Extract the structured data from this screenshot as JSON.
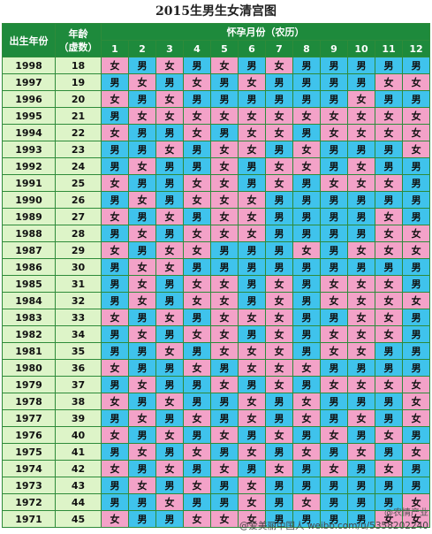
{
  "title": "2015生男生女清宫图",
  "header": {
    "birth_year": "出生年份",
    "age_line1": "年龄",
    "age_line2": "（虚数）",
    "month_group": "怀孕月份（农历）",
    "months": [
      "1",
      "2",
      "3",
      "4",
      "5",
      "6",
      "7",
      "8",
      "9",
      "10",
      "11",
      "12"
    ]
  },
  "legend": {
    "boy": "男",
    "girl": "女"
  },
  "rows": [
    {
      "year": "1998",
      "age": "18",
      "cells": [
        "女",
        "男",
        "女",
        "男",
        "女",
        "男",
        "女",
        "男",
        "男",
        "男",
        "男",
        "男"
      ]
    },
    {
      "year": "1997",
      "age": "19",
      "cells": [
        "男",
        "女",
        "男",
        "女",
        "男",
        "女",
        "男",
        "男",
        "男",
        "男",
        "女",
        "女"
      ]
    },
    {
      "year": "1996",
      "age": "20",
      "cells": [
        "女",
        "男",
        "女",
        "男",
        "男",
        "男",
        "男",
        "男",
        "男",
        "女",
        "男",
        "男"
      ]
    },
    {
      "year": "1995",
      "age": "21",
      "cells": [
        "男",
        "女",
        "女",
        "女",
        "女",
        "女",
        "女",
        "女",
        "女",
        "女",
        "女",
        "女"
      ]
    },
    {
      "year": "1994",
      "age": "22",
      "cells": [
        "女",
        "男",
        "男",
        "女",
        "男",
        "女",
        "女",
        "男",
        "女",
        "女",
        "女",
        "女"
      ]
    },
    {
      "year": "1993",
      "age": "23",
      "cells": [
        "男",
        "男",
        "女",
        "男",
        "女",
        "女",
        "男",
        "女",
        "男",
        "男",
        "男",
        "女"
      ]
    },
    {
      "year": "1992",
      "age": "24",
      "cells": [
        "男",
        "女",
        "男",
        "男",
        "女",
        "男",
        "女",
        "女",
        "男",
        "女",
        "男",
        "男"
      ]
    },
    {
      "year": "1991",
      "age": "25",
      "cells": [
        "女",
        "男",
        "男",
        "女",
        "女",
        "男",
        "女",
        "男",
        "女",
        "女",
        "女",
        "男"
      ]
    },
    {
      "year": "1990",
      "age": "26",
      "cells": [
        "男",
        "女",
        "男",
        "女",
        "女",
        "女",
        "男",
        "男",
        "男",
        "男",
        "男",
        "男"
      ]
    },
    {
      "year": "1989",
      "age": "27",
      "cells": [
        "女",
        "男",
        "女",
        "男",
        "女",
        "女",
        "男",
        "男",
        "男",
        "男",
        "女",
        "男"
      ]
    },
    {
      "year": "1988",
      "age": "28",
      "cells": [
        "男",
        "女",
        "男",
        "女",
        "女",
        "女",
        "男",
        "男",
        "男",
        "男",
        "女",
        "女"
      ]
    },
    {
      "year": "1987",
      "age": "29",
      "cells": [
        "女",
        "男",
        "女",
        "女",
        "男",
        "男",
        "男",
        "女",
        "男",
        "女",
        "女",
        "女"
      ]
    },
    {
      "year": "1986",
      "age": "30",
      "cells": [
        "男",
        "女",
        "女",
        "男",
        "男",
        "男",
        "男",
        "男",
        "男",
        "男",
        "男",
        "男"
      ]
    },
    {
      "year": "1985",
      "age": "31",
      "cells": [
        "男",
        "女",
        "男",
        "女",
        "女",
        "男",
        "女",
        "男",
        "女",
        "女",
        "女",
        "男"
      ]
    },
    {
      "year": "1984",
      "age": "32",
      "cells": [
        "男",
        "女",
        "男",
        "女",
        "女",
        "男",
        "女",
        "男",
        "女",
        "女",
        "女",
        "女"
      ]
    },
    {
      "year": "1983",
      "age": "33",
      "cells": [
        "女",
        "男",
        "女",
        "男",
        "女",
        "女",
        "女",
        "男",
        "男",
        "女",
        "女",
        "男"
      ]
    },
    {
      "year": "1982",
      "age": "34",
      "cells": [
        "男",
        "女",
        "男",
        "女",
        "女",
        "男",
        "女",
        "男",
        "女",
        "女",
        "女",
        "男"
      ]
    },
    {
      "year": "1981",
      "age": "35",
      "cells": [
        "男",
        "男",
        "女",
        "男",
        "女",
        "女",
        "女",
        "男",
        "女",
        "女",
        "男",
        "男"
      ]
    },
    {
      "year": "1980",
      "age": "36",
      "cells": [
        "女",
        "男",
        "男",
        "女",
        "男",
        "女",
        "女",
        "女",
        "男",
        "男",
        "男",
        "男"
      ]
    },
    {
      "year": "1979",
      "age": "37",
      "cells": [
        "男",
        "女",
        "男",
        "男",
        "女",
        "男",
        "女",
        "男",
        "女",
        "女",
        "女",
        "女"
      ]
    },
    {
      "year": "1978",
      "age": "38",
      "cells": [
        "女",
        "男",
        "女",
        "男",
        "男",
        "女",
        "男",
        "女",
        "男",
        "男",
        "男",
        "女"
      ]
    },
    {
      "year": "1977",
      "age": "39",
      "cells": [
        "男",
        "女",
        "男",
        "女",
        "男",
        "女",
        "男",
        "女",
        "男",
        "女",
        "男",
        "女"
      ]
    },
    {
      "year": "1976",
      "age": "40",
      "cells": [
        "女",
        "男",
        "女",
        "男",
        "女",
        "男",
        "女",
        "男",
        "女",
        "男",
        "女",
        "男"
      ]
    },
    {
      "year": "1975",
      "age": "41",
      "cells": [
        "男",
        "女",
        "男",
        "女",
        "男",
        "女",
        "男",
        "女",
        "男",
        "女",
        "男",
        "女"
      ]
    },
    {
      "year": "1974",
      "age": "42",
      "cells": [
        "女",
        "男",
        "女",
        "男",
        "女",
        "男",
        "女",
        "男",
        "女",
        "男",
        "女",
        "男"
      ]
    },
    {
      "year": "1973",
      "age": "43",
      "cells": [
        "男",
        "女",
        "男",
        "女",
        "男",
        "女",
        "男",
        "男",
        "男",
        "男",
        "男",
        "男"
      ]
    },
    {
      "year": "1972",
      "age": "44",
      "cells": [
        "男",
        "男",
        "女",
        "男",
        "男",
        "女",
        "男",
        "女",
        "男",
        "男",
        "男",
        "女"
      ]
    },
    {
      "year": "1971",
      "age": "45",
      "cells": [
        "女",
        "男",
        "男",
        "女",
        "女",
        "女",
        "男",
        "男",
        "男",
        "男",
        "女",
        "女"
      ]
    }
  ],
  "watermark": {
    "brand": "@农情产业",
    "handle": "@爱美丽中国人   weibo.com/u/5358202240"
  }
}
